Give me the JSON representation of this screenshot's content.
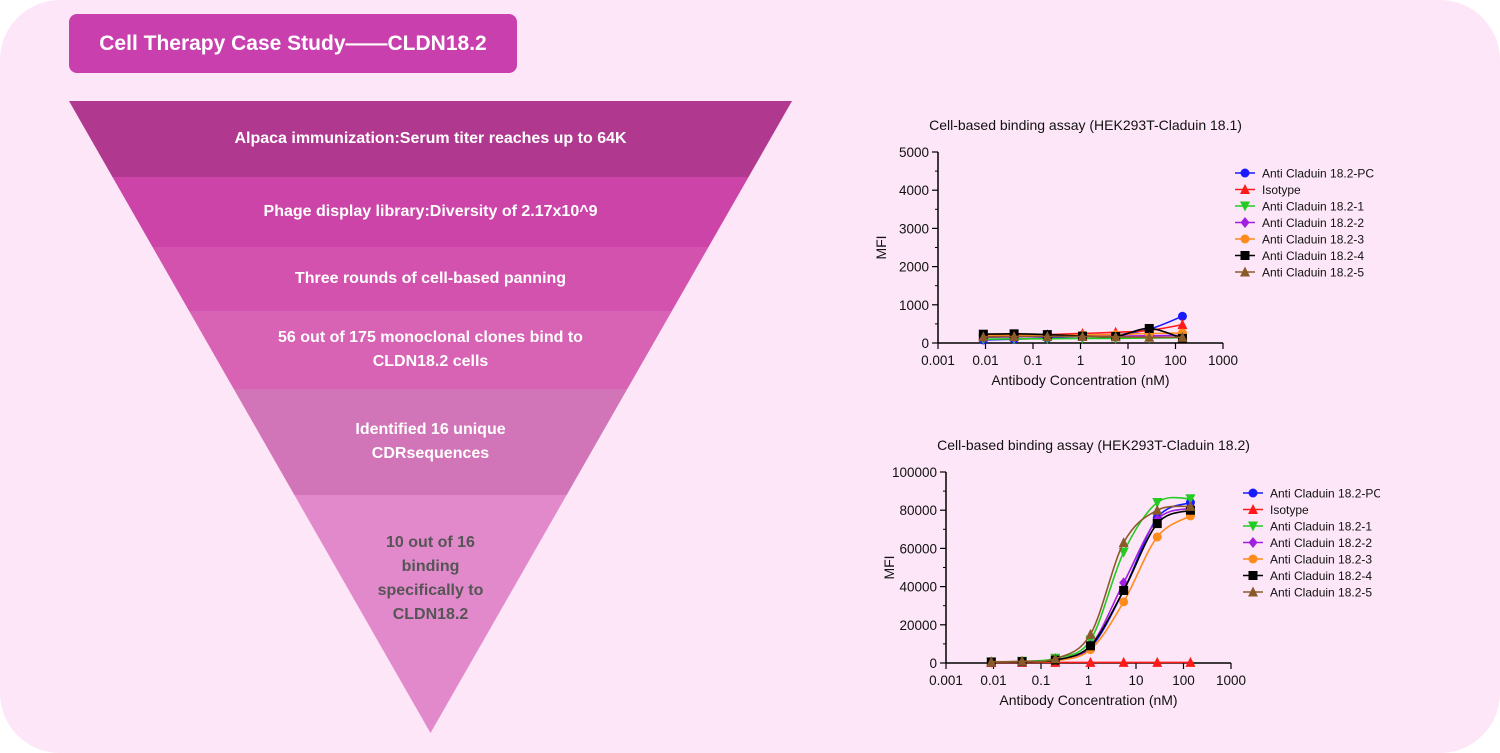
{
  "header": {
    "title": "Cell Therapy Case Study——CLDN18.2"
  },
  "funnel": {
    "layers": [
      {
        "text": "Alpaca immunization:Serum titer reaches up to 64K",
        "color": "#b0398f"
      },
      {
        "text": "Phage display library:Diversity of 2.17x10^9",
        "color": "#cc44a8"
      },
      {
        "text": "Three rounds of cell-based panning",
        "color": "#d252ae"
      },
      {
        "text": "56 out of 175 monoclonal clones bind to\nCLDN18.2 cells",
        "color": "#d862b4"
      },
      {
        "text": "Identified 16 unique\nCDRsequences",
        "color": "#d274b8"
      },
      {
        "text": "10 out of 16\nbinding\nspecifically to\nCLDN18.2",
        "color": "#e289cc"
      }
    ]
  },
  "chart_data": [
    {
      "type": "scatter",
      "title": "Cell-based binding assay (HEK293T-Claduin 18.1)",
      "xlabel": "Antibody Concentration (nM)",
      "ylabel": "MFI",
      "xscale": "log",
      "xlim": [
        0.001,
        1000
      ],
      "ylim": [
        0,
        5000
      ],
      "xticks": [
        "0.001",
        "0.01",
        "0.1",
        "1",
        "10",
        "100",
        "1000"
      ],
      "yticks": [
        "0",
        "1000",
        "2000",
        "3000",
        "4000",
        "5000"
      ],
      "legend_position": "right",
      "x": [
        0.009,
        0.04,
        0.2,
        1.1,
        5.5,
        28,
        140
      ],
      "series": [
        {
          "name": "Anti Claduin 18.2-PC",
          "color": "#1a1aff",
          "marker": "circle",
          "values": [
            80,
            100,
            130,
            180,
            210,
            360,
            700
          ]
        },
        {
          "name": "Isotype",
          "color": "#ff1a1a",
          "marker": "triangle",
          "values": [
            200,
            210,
            220,
            250,
            280,
            330,
            480
          ]
        },
        {
          "name": "Anti Claduin 18.2-1",
          "color": "#22cc22",
          "marker": "triangle-down",
          "values": [
            100,
            110,
            110,
            120,
            120,
            130,
            140
          ]
        },
        {
          "name": "Anti Claduin 18.2-2",
          "color": "#a21ee0",
          "marker": "diamond",
          "values": [
            150,
            160,
            170,
            180,
            180,
            190,
            200
          ]
        },
        {
          "name": "Anti Claduin 18.2-3",
          "color": "#ff8c1a",
          "marker": "circle",
          "values": [
            190,
            200,
            200,
            210,
            220,
            250,
            260
          ]
        },
        {
          "name": "Anti Claduin 18.2-4",
          "color": "#000000",
          "marker": "square",
          "values": [
            230,
            240,
            220,
            180,
            170,
            380,
            120
          ]
        },
        {
          "name": "Anti Claduin 18.2-5",
          "color": "#8b5a2b",
          "marker": "triangle",
          "values": [
            160,
            170,
            170,
            170,
            160,
            150,
            150
          ]
        }
      ]
    },
    {
      "type": "scatter",
      "title": "Cell-based binding assay (HEK293T-Claduin 18.2)",
      "xlabel": "Antibody Concentration (nM)",
      "ylabel": "MFI",
      "xscale": "log",
      "xlim": [
        0.001,
        1000
      ],
      "ylim": [
        0,
        100000
      ],
      "xticks": [
        "0.001",
        "0.01",
        "0.1",
        "1",
        "10",
        "100",
        "1000"
      ],
      "yticks": [
        "0",
        "20000",
        "40000",
        "60000",
        "80000",
        "100000"
      ],
      "legend_position": "right",
      "x": [
        0.009,
        0.04,
        0.2,
        1.1,
        5.5,
        28,
        140
      ],
      "series": [
        {
          "name": "Anti Claduin 18.2-PC",
          "color": "#1a1aff",
          "marker": "circle",
          "values": [
            500,
            700,
            1500,
            8000,
            38000,
            76000,
            84000
          ]
        },
        {
          "name": "Isotype",
          "color": "#ff1a1a",
          "marker": "triangle",
          "values": [
            300,
            300,
            300,
            300,
            300,
            300,
            300
          ]
        },
        {
          "name": "Anti Claduin 18.2-1",
          "color": "#22cc22",
          "marker": "triangle-down",
          "values": [
            600,
            900,
            2500,
            12000,
            58000,
            84000,
            86000
          ]
        },
        {
          "name": "Anti Claduin 18.2-2",
          "color": "#a21ee0",
          "marker": "diamond",
          "values": [
            500,
            700,
            1500,
            9000,
            42000,
            75000,
            81000
          ]
        },
        {
          "name": "Anti Claduin 18.2-3",
          "color": "#ff8c1a",
          "marker": "circle",
          "values": [
            400,
            600,
            1200,
            7000,
            32000,
            66000,
            77000
          ]
        },
        {
          "name": "Anti Claduin 18.2-4",
          "color": "#000000",
          "marker": "square",
          "values": [
            500,
            700,
            1500,
            9000,
            38000,
            73000,
            80000
          ]
        },
        {
          "name": "Anti Claduin 18.2-5",
          "color": "#8b5a2b",
          "marker": "triangle",
          "values": [
            600,
            900,
            2200,
            15000,
            63000,
            80000,
            82000
          ]
        }
      ]
    }
  ]
}
